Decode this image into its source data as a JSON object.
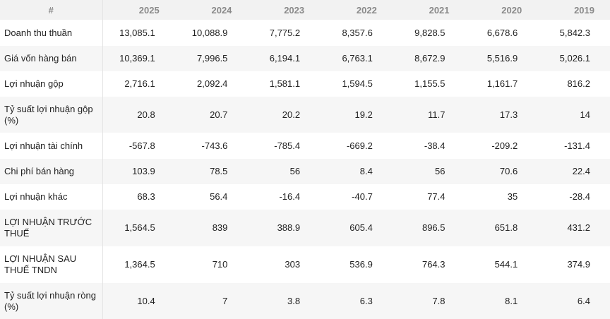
{
  "table": {
    "header": [
      "#",
      "2025",
      "2024",
      "2023",
      "2022",
      "2021",
      "2020",
      "2019"
    ],
    "rows": [
      [
        "Doanh thu thuần",
        "13,085.1",
        "10,088.9",
        "7,775.2",
        "8,357.6",
        "9,828.5",
        "6,678.6",
        "5,842.3"
      ],
      [
        "Giá vốn hàng bán",
        "10,369.1",
        "7,996.5",
        "6,194.1",
        "6,763.1",
        "8,672.9",
        "5,516.9",
        "5,026.1"
      ],
      [
        "Lợi nhuận gộp",
        "2,716.1",
        "2,092.4",
        "1,581.1",
        "1,594.5",
        "1,155.5",
        "1,161.7",
        "816.2"
      ],
      [
        "Tỷ suất lợi nhuận gộp (%)",
        "20.8",
        "20.7",
        "20.2",
        "19.2",
        "11.7",
        "17.3",
        "14"
      ],
      [
        "Lợi nhuận tài chính",
        "-567.8",
        "-743.6",
        "-785.4",
        "-669.2",
        "-38.4",
        "-209.2",
        "-131.4"
      ],
      [
        "Chi phí bán hàng",
        "103.9",
        "78.5",
        "56",
        "8.4",
        "56",
        "70.6",
        "22.4"
      ],
      [
        "Lợi nhuận khác",
        "68.3",
        "56.4",
        "-16.4",
        "-40.7",
        "77.4",
        "35",
        "-28.4"
      ],
      [
        "LỢI NHUẬN TRƯỚC THUẾ",
        "1,564.5",
        "839",
        "388.9",
        "605.4",
        "896.5",
        "651.8",
        "431.2"
      ],
      [
        "LỢI NHUẬN SAU THUẾ TNDN",
        "1,364.5",
        "710",
        "303",
        "536.9",
        "764.3",
        "544.1",
        "374.9"
      ],
      [
        "Tỷ suất lợi nhuận ròng (%)",
        "10.4",
        "7",
        "3.8",
        "6.3",
        "7.8",
        "8.1",
        "6.4"
      ]
    ]
  }
}
